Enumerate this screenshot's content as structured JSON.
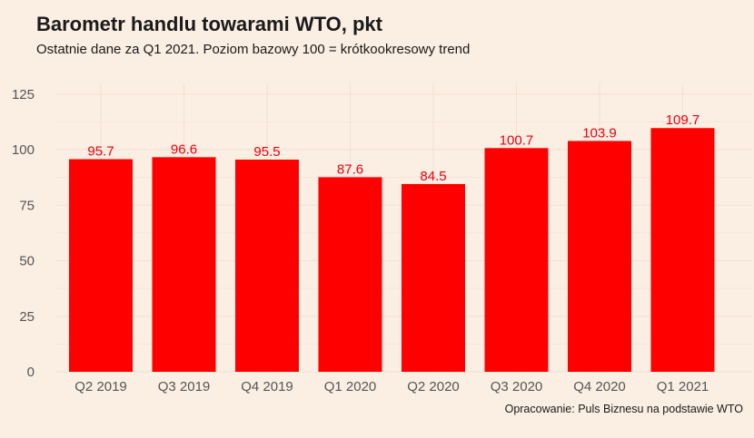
{
  "title": "Barometr handlu towarami WTO, pkt",
  "subtitle": "Ostatnie dane za Q1 2021. Poziom bazowy 100 = krótkookresowy trend",
  "source": "Opracowanie: Puls Biznesu na podstawie WTO",
  "colors": {
    "background": "#fbeee3",
    "bar": "#ff0000",
    "data_label": "#e8000e"
  },
  "chart_data": {
    "type": "bar",
    "categories": [
      "Q2 2019",
      "Q3 2019",
      "Q4 2019",
      "Q1 2020",
      "Q2 2020",
      "Q3 2020",
      "Q4 2020",
      "Q1 2021"
    ],
    "values": [
      95.7,
      96.6,
      95.5,
      87.6,
      84.5,
      100.7,
      103.9,
      109.7
    ],
    "data_labels": [
      "95.7",
      "96.6",
      "95.5",
      "87.6",
      "84.5",
      "100.7",
      "103.9",
      "109.7"
    ],
    "yticks": [
      0,
      25,
      50,
      75,
      100,
      125
    ],
    "ylim": [
      0,
      130
    ],
    "grid": true,
    "legend": "none"
  }
}
